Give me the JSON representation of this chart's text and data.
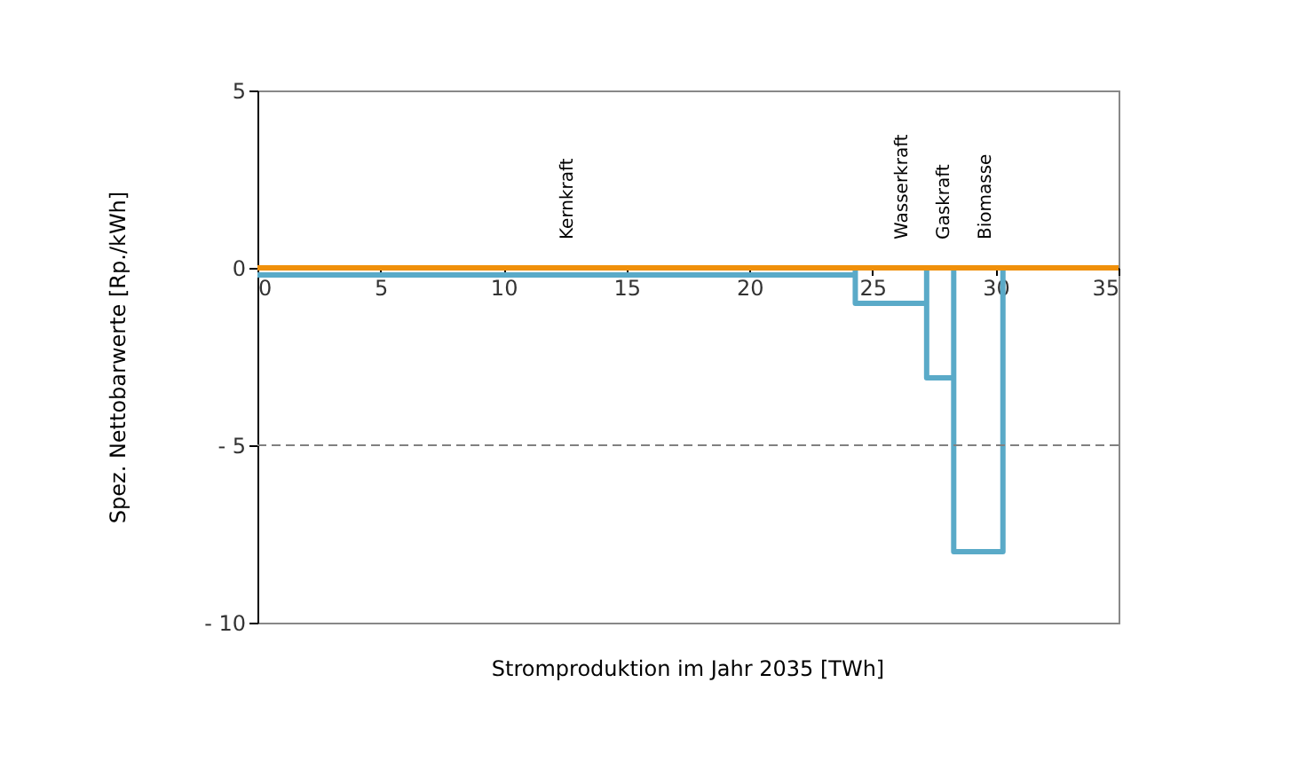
{
  "chart_data": {
    "type": "line",
    "xlabel": "Stromproduktion im Jahr 2035 [TWh]",
    "ylabel": "Spez. Nettobarwerte [Rp./kWh]",
    "series": [
      {
        "color": "#5aaac8",
        "x": [
          0,
          24.3,
          24.3,
          24.3,
          27.2,
          27.2,
          27.2,
          28.3,
          28.3,
          28.3,
          30.3,
          30.3
        ],
        "values": [
          -0.2,
          -0.2,
          0,
          -1,
          -1,
          0,
          -3.1,
          -3.1,
          0,
          -8,
          -8,
          0
        ]
      },
      {
        "color": "#f0900a",
        "x": [
          0,
          35
        ],
        "values": [
          0,
          0
        ]
      }
    ],
    "annotations": [
      {
        "text": "Kernkraft",
        "x": 12.6,
        "y": 0
      },
      {
        "text": "Wasserkraft",
        "x": 26.2,
        "y": 0
      },
      {
        "text": "Gaskraft",
        "x": 27.9,
        "y": 0
      },
      {
        "text": "Biomasse",
        "x": 29.6,
        "y": 0
      }
    ],
    "ref_lines": [
      {
        "axis": "y",
        "value": -5,
        "color": "#808080",
        "line_style": "dashed"
      }
    ],
    "xlim": [
      0,
      35
    ],
    "xticks": [
      0,
      5,
      10,
      15,
      20,
      25,
      30,
      35
    ],
    "ylim": [
      -10,
      5
    ],
    "yticks": [
      {
        "value": -10,
        "label": "-    10"
      },
      {
        "value": -5,
        "label": "-     5"
      },
      0,
      5
    ],
    "grid": false,
    "marker": "none",
    "line_style": "solid"
  }
}
